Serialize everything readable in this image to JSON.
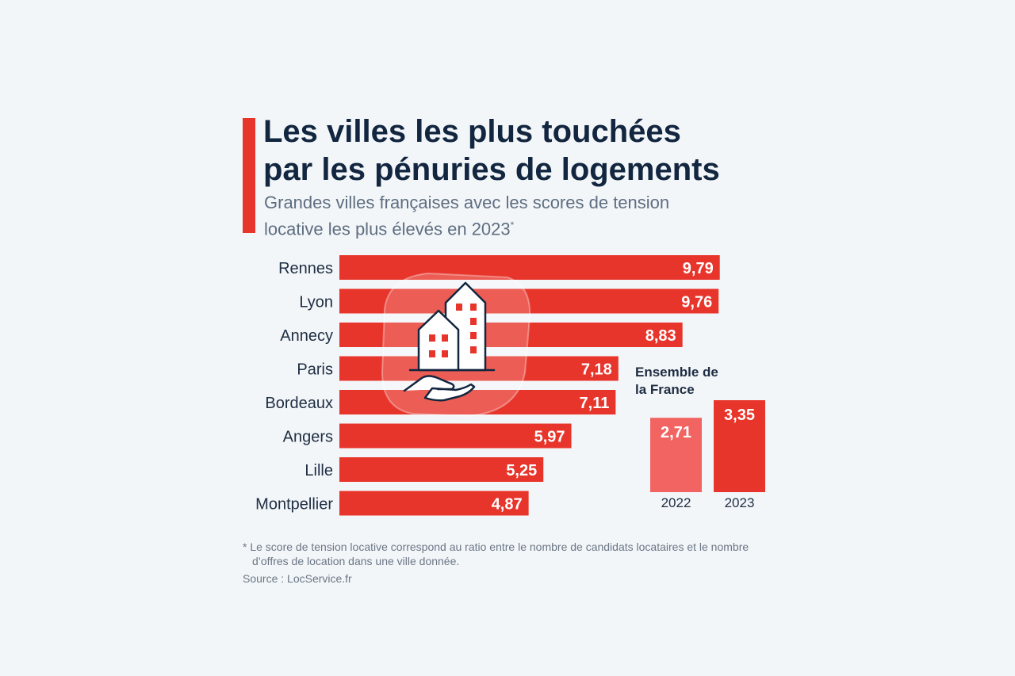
{
  "header": {
    "title_line1": "Les villes les plus touchées",
    "title_line2": "par les pénuries de logements",
    "subtitle_line1": "Grandes villes françaises avec les scores de tension",
    "subtitle_line2": "locative les plus élevés en 2023",
    "subtitle_mark": "*"
  },
  "chart_data": [
    {
      "type": "bar",
      "orientation": "horizontal",
      "categories": [
        "Rennes",
        "Lyon",
        "Annecy",
        "Paris",
        "Bordeaux",
        "Angers",
        "Lille",
        "Montpellier"
      ],
      "values": [
        9.79,
        9.76,
        8.83,
        7.18,
        7.11,
        5.97,
        5.25,
        4.87
      ],
      "value_labels": [
        "9,79",
        "9,76",
        "8,83",
        "7,18",
        "7,11",
        "5,97",
        "5,25",
        "4,87"
      ],
      "xlim": [
        0,
        10
      ],
      "grid": false,
      "color": "#e8352b"
    },
    {
      "type": "bar",
      "title_line1": "Ensemble de",
      "title_line2": "la France",
      "categories": [
        "2022",
        "2023"
      ],
      "values": [
        2.71,
        3.35
      ],
      "value_labels": [
        "2,71",
        "3,35"
      ],
      "ylim": [
        0,
        3.35
      ],
      "grid": false,
      "colors": [
        "#f26461",
        "#e8352b"
      ]
    }
  ],
  "icon": "houses-in-hand-icon",
  "footer": {
    "footnote": "* Le score de tension locative correspond au ratio entre le nombre de candidats locataires et le nombre d’offres de location dans une ville donnée.",
    "source": "Source : LocService.fr"
  }
}
